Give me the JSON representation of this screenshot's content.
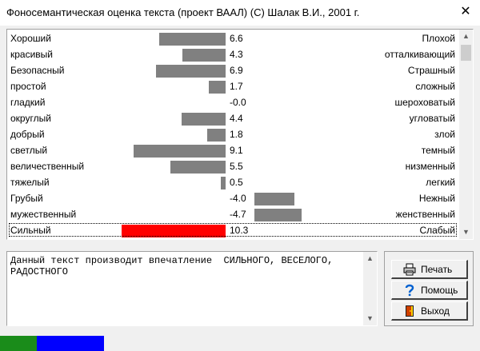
{
  "window": {
    "title": "Фоносемантическая оценка текста (проект ВААЛ) (С) Шалак В.И., 2001 г.",
    "close_glyph": "✕"
  },
  "scales": [
    {
      "left": "Хороший",
      "value": 6.6,
      "display": "6.6",
      "right": "Плохой"
    },
    {
      "left": "красивый",
      "value": 4.3,
      "display": "4.3",
      "right": "отталкивающий"
    },
    {
      "left": "Безопасный",
      "value": 6.9,
      "display": "6.9",
      "right": "Страшный"
    },
    {
      "left": "простой",
      "value": 1.7,
      "display": "1.7",
      "right": "сложный"
    },
    {
      "left": "гладкий",
      "value": -0.0,
      "display": "-0.0",
      "right": "шероховатый"
    },
    {
      "left": "округлый",
      "value": 4.4,
      "display": "4.4",
      "right": "угловатый"
    },
    {
      "left": "добрый",
      "value": 1.8,
      "display": "1.8",
      "right": "злой"
    },
    {
      "left": "светлый",
      "value": 9.1,
      "display": "9.1",
      "right": "темный"
    },
    {
      "left": "величественный",
      "value": 5.5,
      "display": "5.5",
      "right": "низменный"
    },
    {
      "left": "тяжелый",
      "value": 0.5,
      "display": "0.5",
      "right": "легкий"
    },
    {
      "left": "Грубый",
      "value": -4.0,
      "display": "-4.0",
      "right": "Нежный"
    },
    {
      "left": "мужественный",
      "value": -4.7,
      "display": "-4.7",
      "right": "женственный"
    },
    {
      "left": "Сильный",
      "value": 10.3,
      "display": "10.3",
      "right": "Слабый",
      "highlight": true
    }
  ],
  "colors": {
    "bar": "#808080",
    "bar_highlight": "#ff0000",
    "status_green": "#1a8c1a",
    "status_blue": "#0000ff"
  },
  "result_text": "Данный текст производит впечатление  СИЛЬНОГО, ВЕСЕЛОГО,\nРАДОСТНОГО",
  "buttons": {
    "print": {
      "label": "Печать",
      "icon": "printer-icon"
    },
    "help": {
      "label": "Помощь",
      "icon": "question-icon"
    },
    "exit": {
      "label": "Выход",
      "icon": "door-exit-icon"
    }
  },
  "scrollbars": {
    "up": "▲",
    "down": "▼"
  }
}
